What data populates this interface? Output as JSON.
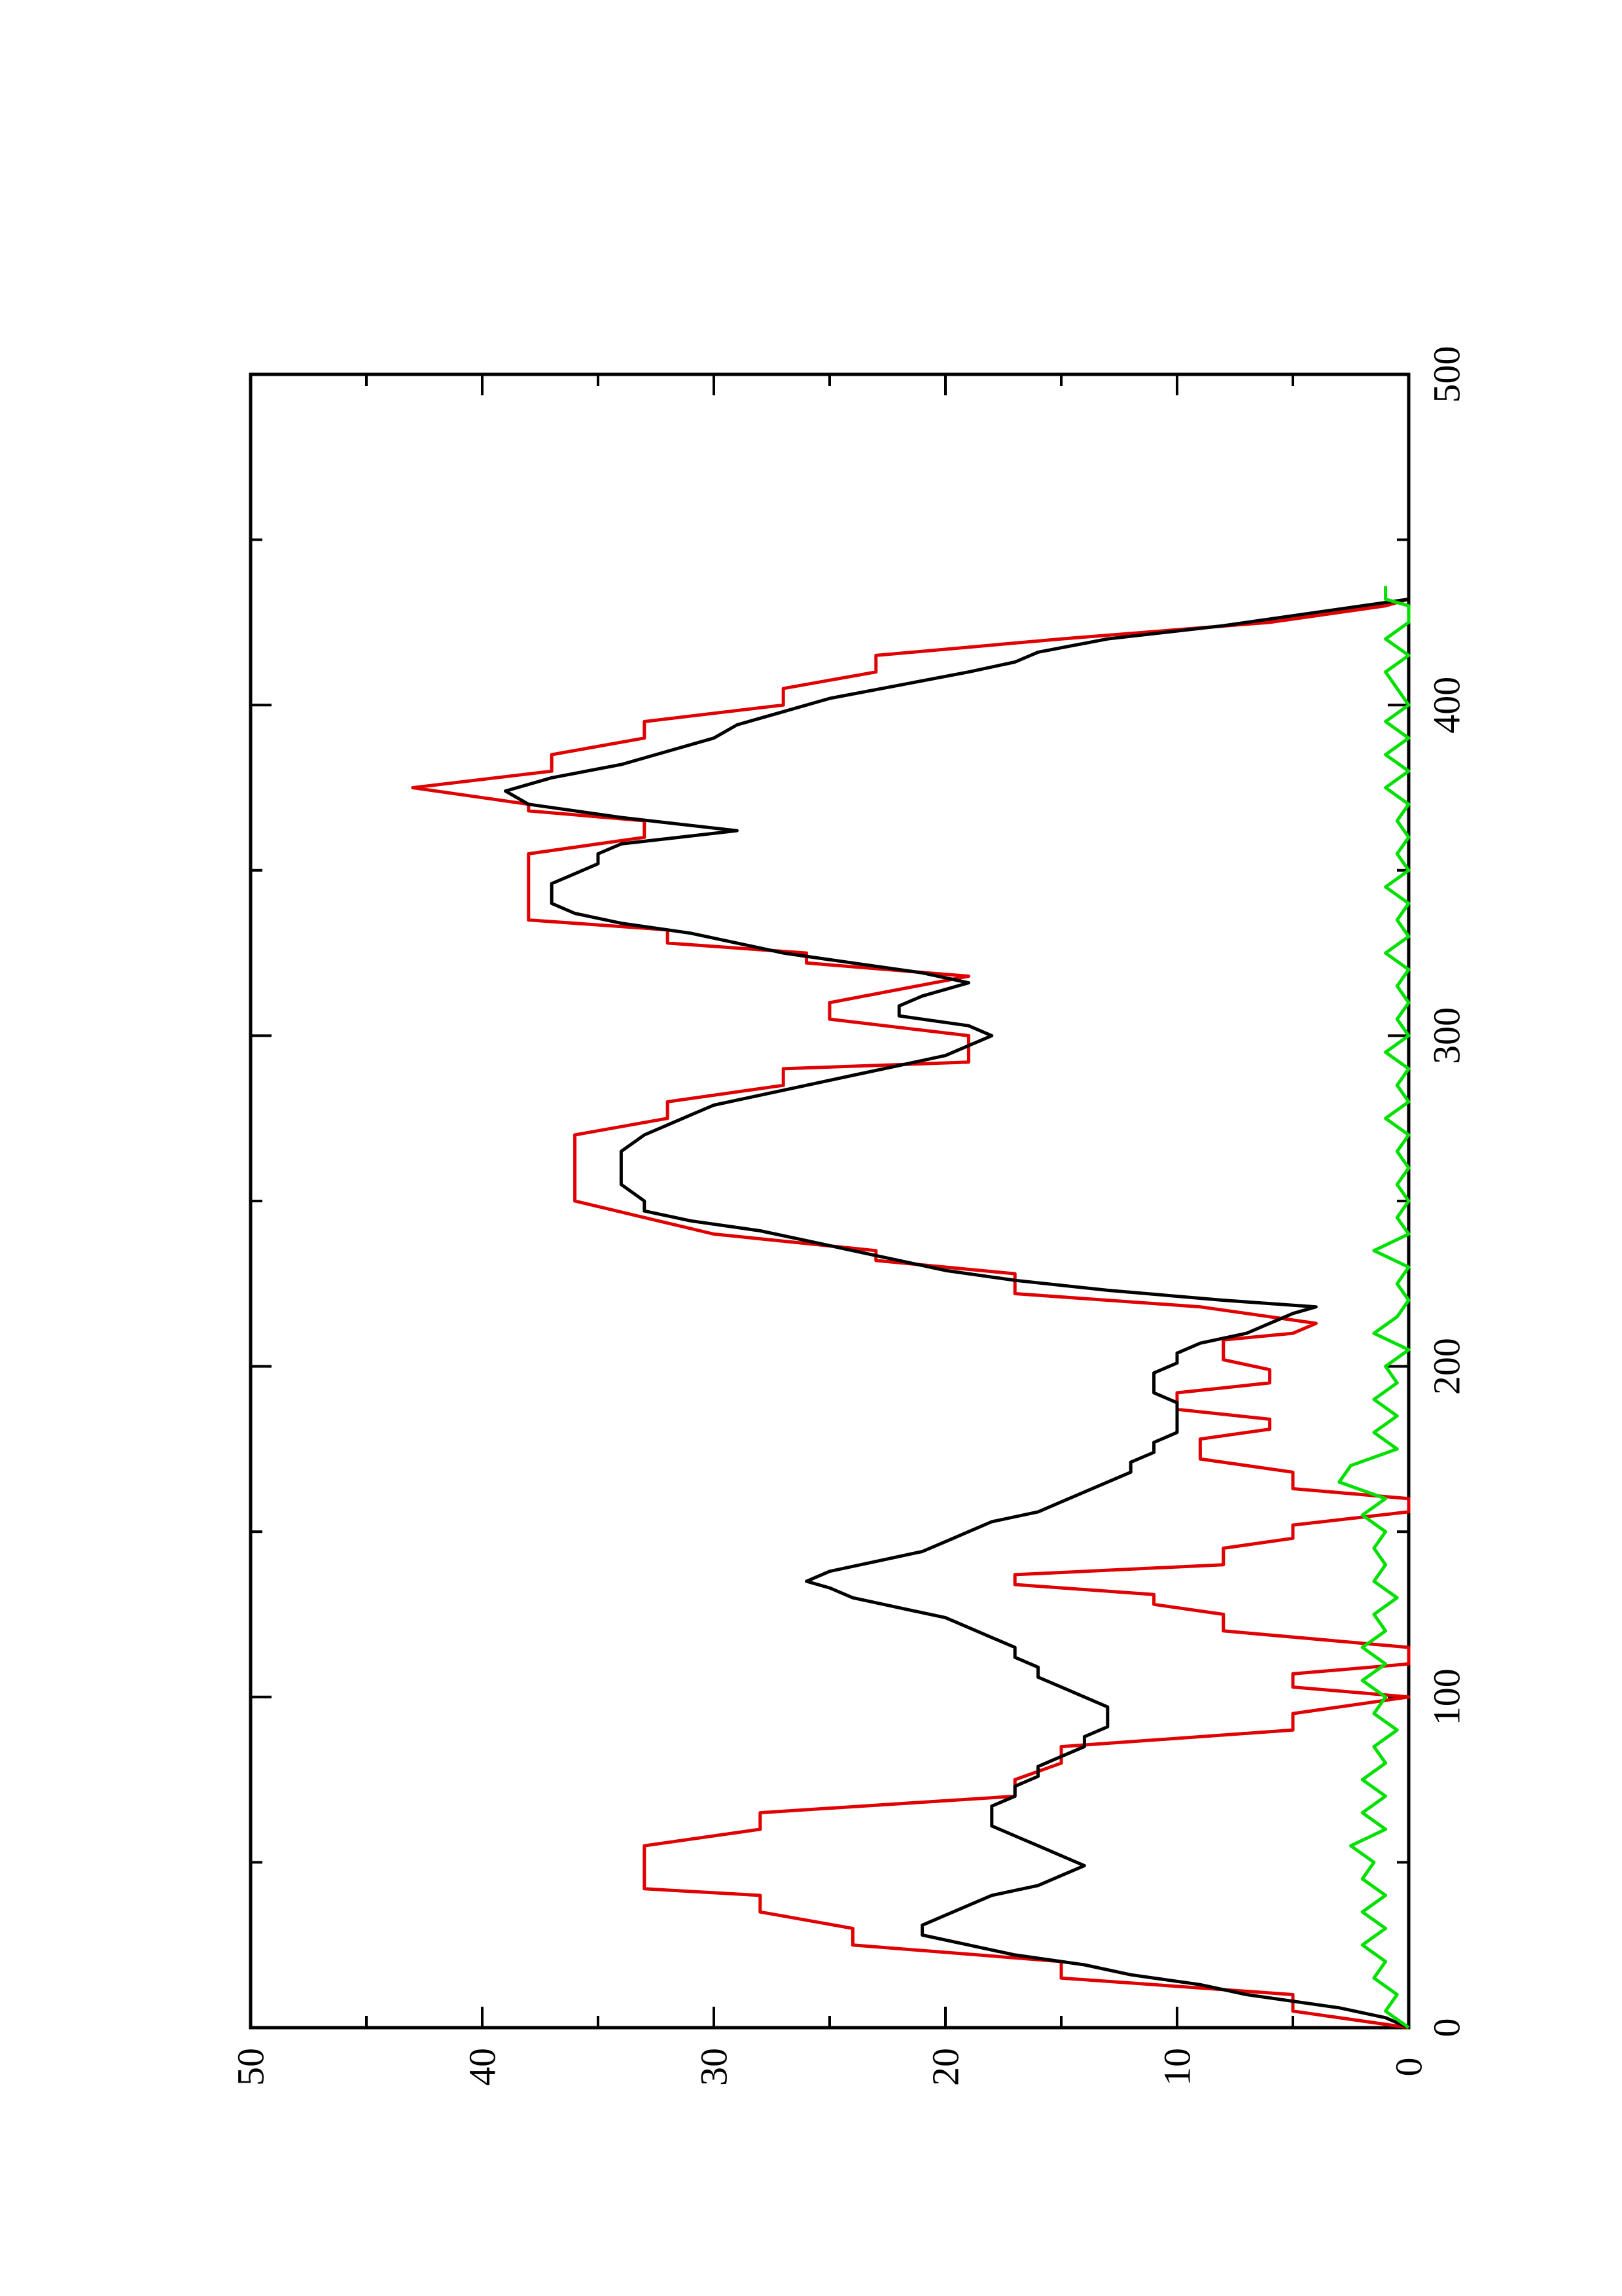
{
  "chart_data": {
    "type": "line",
    "orientation": "rotated 90 degrees counter-clockwise",
    "title": "",
    "xlabel": "",
    "ylabel": "",
    "xlim": [
      0,
      500
    ],
    "ylim": [
      0,
      50
    ],
    "x_ticks_major": [
      0,
      100,
      200,
      300,
      400,
      500
    ],
    "x_ticks_minor": [
      50,
      150,
      250,
      350,
      450
    ],
    "y_ticks_major": [
      0,
      10,
      20,
      30,
      40,
      50
    ],
    "y_ticks_minor": [
      5,
      15,
      25,
      35,
      45
    ],
    "grid": false,
    "legend": "none",
    "series": [
      {
        "color": "#e00000",
        "points": [
          [
            0,
            0
          ],
          [
            5,
            5
          ],
          [
            10,
            5
          ],
          [
            15,
            15
          ],
          [
            20,
            15
          ],
          [
            25,
            24
          ],
          [
            30,
            24
          ],
          [
            35,
            28
          ],
          [
            40,
            28
          ],
          [
            42,
            33
          ],
          [
            55,
            33
          ],
          [
            60,
            28
          ],
          [
            65,
            28
          ],
          [
            70,
            17
          ],
          [
            75,
            17
          ],
          [
            80,
            15
          ],
          [
            85,
            15
          ],
          [
            90,
            5
          ],
          [
            95,
            5
          ],
          [
            100,
            0
          ],
          [
            103,
            5
          ],
          [
            107,
            5
          ],
          [
            110,
            0
          ],
          [
            115,
            0
          ],
          [
            120,
            8
          ],
          [
            125,
            8
          ],
          [
            128,
            11
          ],
          [
            131,
            11
          ],
          [
            134,
            17
          ],
          [
            137,
            17
          ],
          [
            140,
            8
          ],
          [
            145,
            8
          ],
          [
            148,
            5
          ],
          [
            152,
            5
          ],
          [
            156,
            0
          ],
          [
            160,
            0
          ],
          [
            163,
            5
          ],
          [
            168,
            5
          ],
          [
            172,
            9
          ],
          [
            178,
            9
          ],
          [
            181,
            6
          ],
          [
            184,
            6
          ],
          [
            187,
            10
          ],
          [
            192,
            10
          ],
          [
            195,
            6
          ],
          [
            199,
            6
          ],
          [
            202,
            8
          ],
          [
            208,
            8
          ],
          [
            210,
            5
          ],
          [
            213,
            4
          ],
          [
            218,
            9
          ],
          [
            222,
            17
          ],
          [
            228,
            17
          ],
          [
            232,
            23
          ],
          [
            235,
            23
          ],
          [
            240,
            30
          ],
          [
            250,
            36
          ],
          [
            270,
            36
          ],
          [
            275,
            32
          ],
          [
            280,
            32
          ],
          [
            285,
            27
          ],
          [
            290,
            27
          ],
          [
            292,
            19
          ],
          [
            300,
            19
          ],
          [
            305,
            25
          ],
          [
            310,
            25
          ],
          [
            318,
            19
          ],
          [
            322,
            26
          ],
          [
            325,
            26
          ],
          [
            328,
            32
          ],
          [
            332,
            32
          ],
          [
            335,
            38
          ],
          [
            355,
            38
          ],
          [
            360,
            33
          ],
          [
            365,
            33
          ],
          [
            368,
            38
          ],
          [
            370,
            38
          ],
          [
            375,
            43
          ],
          [
            380,
            37
          ],
          [
            385,
            37
          ],
          [
            390,
            33
          ],
          [
            395,
            33
          ],
          [
            400,
            27
          ],
          [
            405,
            27
          ],
          [
            410,
            23
          ],
          [
            415,
            23
          ],
          [
            420,
            15
          ],
          [
            425,
            6
          ],
          [
            430,
            1
          ],
          [
            432,
            0
          ]
        ]
      },
      {
        "color": "#000000",
        "points": [
          [
            0,
            0
          ],
          [
            3,
            1
          ],
          [
            6,
            3
          ],
          [
            10,
            7
          ],
          [
            13,
            9
          ],
          [
            16,
            12
          ],
          [
            19,
            14
          ],
          [
            22,
            17
          ],
          [
            25,
            19
          ],
          [
            28,
            21
          ],
          [
            31,
            21
          ],
          [
            34,
            20
          ],
          [
            37,
            19
          ],
          [
            40,
            18
          ],
          [
            43,
            16
          ],
          [
            46,
            15
          ],
          [
            49,
            14
          ],
          [
            52,
            15
          ],
          [
            55,
            16
          ],
          [
            58,
            17
          ],
          [
            61,
            18
          ],
          [
            64,
            18
          ],
          [
            67,
            18
          ],
          [
            70,
            17
          ],
          [
            73,
            17
          ],
          [
            76,
            16
          ],
          [
            79,
            16
          ],
          [
            82,
            15
          ],
          [
            85,
            14
          ],
          [
            88,
            14
          ],
          [
            91,
            13
          ],
          [
            94,
            13
          ],
          [
            97,
            13
          ],
          [
            100,
            14
          ],
          [
            103,
            15
          ],
          [
            106,
            16
          ],
          [
            109,
            16
          ],
          [
            112,
            17
          ],
          [
            115,
            17
          ],
          [
            118,
            18
          ],
          [
            121,
            19
          ],
          [
            124,
            20
          ],
          [
            127,
            22
          ],
          [
            130,
            24
          ],
          [
            133,
            25
          ],
          [
            135,
            26
          ],
          [
            138,
            25
          ],
          [
            141,
            23
          ],
          [
            144,
            21
          ],
          [
            147,
            20
          ],
          [
            150,
            19
          ],
          [
            153,
            18
          ],
          [
            156,
            16
          ],
          [
            159,
            15
          ],
          [
            162,
            14
          ],
          [
            165,
            13
          ],
          [
            168,
            12
          ],
          [
            171,
            12
          ],
          [
            174,
            11
          ],
          [
            177,
            11
          ],
          [
            180,
            10
          ],
          [
            183,
            10
          ],
          [
            186,
            10
          ],
          [
            189,
            10
          ],
          [
            192,
            11
          ],
          [
            195,
            11
          ],
          [
            198,
            11
          ],
          [
            201,
            10
          ],
          [
            204,
            10
          ],
          [
            207,
            9
          ],
          [
            210,
            7
          ],
          [
            213,
            6
          ],
          [
            216,
            5
          ],
          [
            218,
            4
          ],
          [
            220,
            8
          ],
          [
            223,
            13
          ],
          [
            226,
            17
          ],
          [
            229,
            20
          ],
          [
            232,
            22
          ],
          [
            235,
            24
          ],
          [
            238,
            26
          ],
          [
            241,
            28
          ],
          [
            244,
            31
          ],
          [
            247,
            33
          ],
          [
            250,
            33
          ],
          [
            255,
            34
          ],
          [
            260,
            34
          ],
          [
            265,
            34
          ],
          [
            270,
            33
          ],
          [
            273,
            32
          ],
          [
            276,
            31
          ],
          [
            279,
            30
          ],
          [
            282,
            28
          ],
          [
            285,
            26
          ],
          [
            288,
            24
          ],
          [
            291,
            22
          ],
          [
            294,
            20
          ],
          [
            297,
            19
          ],
          [
            300,
            18
          ],
          [
            303,
            19
          ],
          [
            306,
            22
          ],
          [
            309,
            22
          ],
          [
            312,
            21
          ],
          [
            316,
            19
          ],
          [
            319,
            21
          ],
          [
            322,
            24
          ],
          [
            325,
            27
          ],
          [
            328,
            29
          ],
          [
            331,
            31
          ],
          [
            334,
            34
          ],
          [
            337,
            36
          ],
          [
            340,
            37
          ],
          [
            343,
            37
          ],
          [
            346,
            37
          ],
          [
            349,
            36
          ],
          [
            352,
            35
          ],
          [
            355,
            35
          ],
          [
            358,
            34
          ],
          [
            362,
            29
          ],
          [
            366,
            34
          ],
          [
            370,
            38
          ],
          [
            374,
            39
          ],
          [
            378,
            37
          ],
          [
            382,
            34
          ],
          [
            386,
            32
          ],
          [
            390,
            30
          ],
          [
            394,
            29
          ],
          [
            398,
            27
          ],
          [
            402,
            25
          ],
          [
            406,
            22
          ],
          [
            410,
            19
          ],
          [
            413,
            17
          ],
          [
            416,
            16
          ],
          [
            420,
            13
          ],
          [
            424,
            8
          ],
          [
            428,
            4
          ],
          [
            432,
            0
          ]
        ]
      },
      {
        "color": "#00e000",
        "points": [
          [
            0,
            0
          ],
          [
            5,
            1
          ],
          [
            10,
            0.5
          ],
          [
            15,
            1.5
          ],
          [
            20,
            1
          ],
          [
            25,
            2
          ],
          [
            30,
            1
          ],
          [
            35,
            2
          ],
          [
            40,
            1
          ],
          [
            45,
            2
          ],
          [
            50,
            1.5
          ],
          [
            55,
            2.5
          ],
          [
            60,
            1
          ],
          [
            65,
            2
          ],
          [
            70,
            1
          ],
          [
            75,
            2
          ],
          [
            80,
            1
          ],
          [
            85,
            1.5
          ],
          [
            90,
            0.5
          ],
          [
            95,
            1.5
          ],
          [
            100,
            1
          ],
          [
            105,
            2
          ],
          [
            110,
            1
          ],
          [
            115,
            2
          ],
          [
            120,
            1
          ],
          [
            125,
            1.5
          ],
          [
            130,
            0.5
          ],
          [
            135,
            1.5
          ],
          [
            140,
            1
          ],
          [
            145,
            1.5
          ],
          [
            150,
            1
          ],
          [
            155,
            2
          ],
          [
            160,
            1
          ],
          [
            165,
            3
          ],
          [
            170,
            2.5
          ],
          [
            175,
            0.5
          ],
          [
            180,
            1.5
          ],
          [
            185,
            0.5
          ],
          [
            190,
            1.5
          ],
          [
            195,
            0.5
          ],
          [
            200,
            1
          ],
          [
            205,
            0
          ],
          [
            210,
            1.5
          ],
          [
            215,
            0.5
          ],
          [
            220,
            0
          ],
          [
            225,
            0.5
          ],
          [
            230,
            0
          ],
          [
            235,
            1.5
          ],
          [
            240,
            0
          ],
          [
            245,
            0.5
          ],
          [
            250,
            0
          ],
          [
            255,
            0.5
          ],
          [
            260,
            0
          ],
          [
            265,
            0.5
          ],
          [
            270,
            0
          ],
          [
            275,
            1
          ],
          [
            280,
            0
          ],
          [
            285,
            0.5
          ],
          [
            290,
            0
          ],
          [
            295,
            1
          ],
          [
            300,
            0
          ],
          [
            305,
            0.5
          ],
          [
            310,
            0
          ],
          [
            315,
            0.5
          ],
          [
            320,
            0
          ],
          [
            325,
            1
          ],
          [
            330,
            0
          ],
          [
            335,
            0.5
          ],
          [
            340,
            0
          ],
          [
            345,
            1
          ],
          [
            350,
            0
          ],
          [
            355,
            0.5
          ],
          [
            360,
            0
          ],
          [
            365,
            0.5
          ],
          [
            370,
            0
          ],
          [
            375,
            1
          ],
          [
            380,
            0
          ],
          [
            385,
            1
          ],
          [
            390,
            0
          ],
          [
            395,
            1
          ],
          [
            400,
            0
          ],
          [
            405,
            0.5
          ],
          [
            410,
            1
          ],
          [
            415,
            0
          ],
          [
            420,
            1
          ],
          [
            425,
            0
          ],
          [
            430,
            0
          ],
          [
            432,
            1
          ],
          [
            436,
            1
          ]
        ]
      }
    ]
  }
}
